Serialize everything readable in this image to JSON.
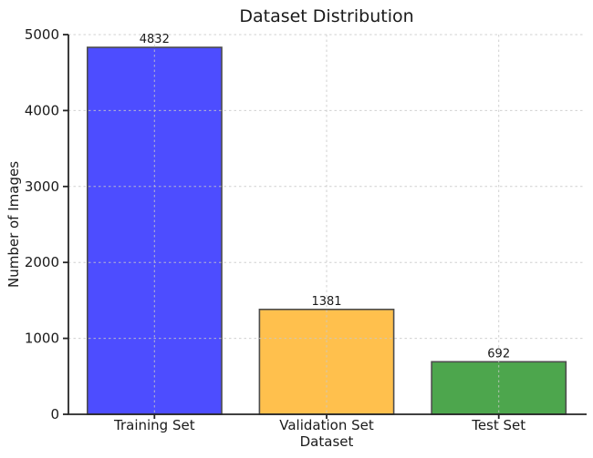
{
  "chart_data": {
    "type": "bar",
    "title": "Dataset Distribution",
    "xlabel": "Dataset",
    "ylabel": "Number of Images",
    "categories": [
      "Training Set",
      "Validation Set",
      "Test Set"
    ],
    "values": [
      4832,
      1381,
      692
    ],
    "ylim": [
      0,
      5000
    ],
    "yticks": [
      0,
      1000,
      2000,
      3000,
      4000,
      5000
    ],
    "ytick_labels": [
      "0",
      "1000",
      "2000",
      "3000",
      "4000",
      "5000"
    ],
    "bar_colors": [
      "#4d4dff",
      "#ffc04d",
      "#4da64d"
    ],
    "bar_edge_color": "#4d4d4d",
    "grid": "on",
    "grid_line_style": "dashed",
    "grid_color": "#c8c8c8",
    "spine_color": "#262626",
    "text_color": "#1a1a1a",
    "background_color": "#ffffff",
    "legend_position": "none"
  }
}
